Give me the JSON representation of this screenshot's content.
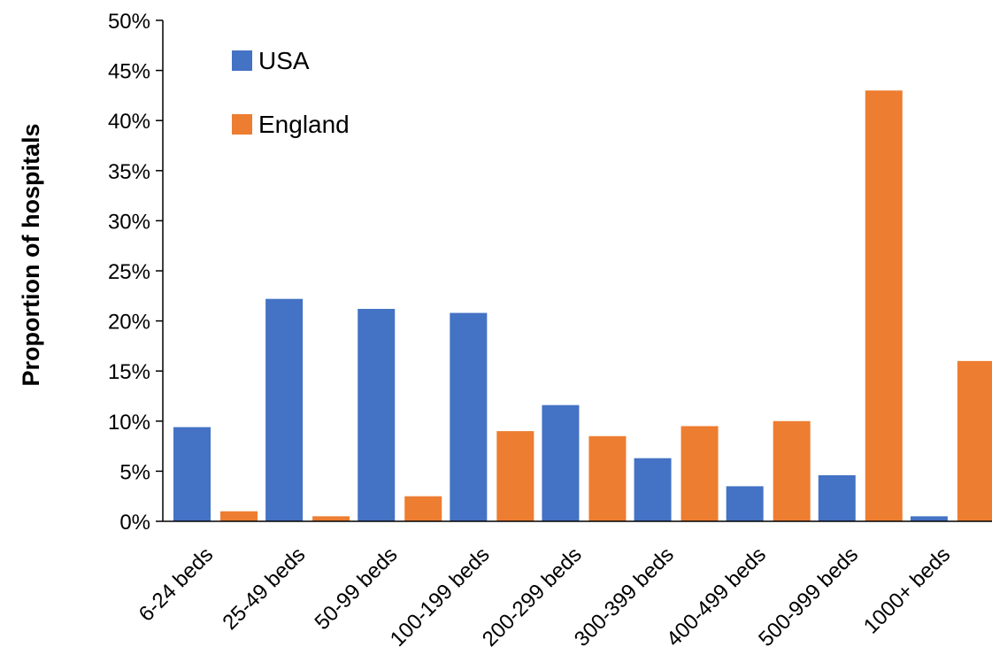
{
  "chart_data": {
    "type": "bar",
    "title": "",
    "xlabel": "",
    "ylabel": "Proportion of hospitals",
    "categories": [
      "6-24 beds",
      "25-49 beds",
      "50-99 beds",
      "100-199 beds",
      "200-299 beds",
      "300-399 beds",
      "400-499 beds",
      "500-999 beds",
      "1000+ beds"
    ],
    "series": [
      {
        "name": "USA",
        "color": "#4472C4",
        "values": [
          9.4,
          22.2,
          21.2,
          20.8,
          11.6,
          6.3,
          3.5,
          4.6,
          0.5
        ]
      },
      {
        "name": "England",
        "color": "#ED7D31",
        "values": [
          1.0,
          0.5,
          2.5,
          9.0,
          8.5,
          9.5,
          10.0,
          43.0,
          16.0
        ]
      }
    ],
    "ylim": [
      0,
      50
    ],
    "ytick_step": 5,
    "ytick_labels": [
      "0%",
      "5%",
      "10%",
      "15%",
      "20%",
      "25%",
      "30%",
      "35%",
      "40%",
      "45%",
      "50%"
    ],
    "grid": false,
    "legend_position": "top-left"
  }
}
